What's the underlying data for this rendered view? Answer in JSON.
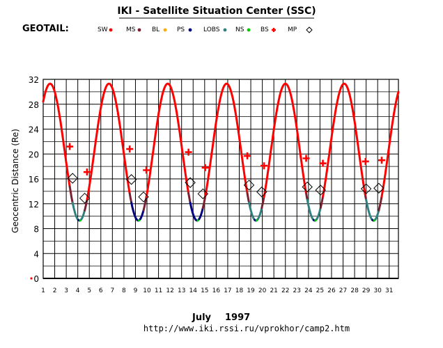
{
  "chart_data": {
    "type": "line",
    "title": "IKI - Satellite Situation Center (SSC)",
    "satellite": "GEOTAIL:",
    "ylabel": "Geocentric Distance (Re)",
    "ylim": [
      0,
      32
    ],
    "yticks": [
      0,
      4,
      8,
      12,
      16,
      20,
      24,
      28,
      32
    ],
    "xlim": [
      1,
      31.8
    ],
    "xticks": [
      1,
      2,
      3,
      4,
      5,
      6,
      7,
      8,
      9,
      10,
      11,
      12,
      13,
      14,
      15,
      16,
      17,
      18,
      19,
      20,
      21,
      22,
      23,
      24,
      25,
      26,
      27,
      28,
      29,
      30,
      31
    ],
    "month_label": "July",
    "year_label": "1997",
    "url": "http://www.iki.rssi.ru/vprokhor/camp2.htm",
    "grid": true,
    "legend": [
      {
        "label": "SW",
        "symbol": "dot",
        "color": "#ff0000"
      },
      {
        "label": "MS",
        "symbol": "dot",
        "color": "#7a2030"
      },
      {
        "label": "BL",
        "symbol": "dot",
        "color": "#ffaa00"
      },
      {
        "label": "PS",
        "symbol": "dot",
        "color": "#000080"
      },
      {
        "label": "LOBS",
        "symbol": "dot",
        "color": "#308080"
      },
      {
        "label": "NS",
        "symbol": "dot",
        "color": "#00cc00"
      },
      {
        "label": "BS",
        "symbol": "plus",
        "color": "#ff0000"
      },
      {
        "label": "MP",
        "symbol": "diamond",
        "color": "#000000"
      }
    ],
    "orbit": {
      "apogee": 31.3,
      "perigee": 9.3,
      "period_days": 5.1,
      "first_apogee_day": 1.6
    },
    "perigees": [
      {
        "day": 4.15,
        "tail": "LOBS"
      },
      {
        "day": 9.25,
        "tail": "PS"
      },
      {
        "day": 14.35,
        "tail": "PS"
      },
      {
        "day": 19.45,
        "tail": "LOBS"
      },
      {
        "day": 24.55,
        "tail": "LOBS"
      },
      {
        "day": 29.65,
        "tail": "LOBS"
      }
    ],
    "bow_shock_crossings": [
      {
        "day": 3.3,
        "y": 21.2
      },
      {
        "day": 4.8,
        "y": 17.1
      },
      {
        "day": 8.5,
        "y": 20.8
      },
      {
        "day": 9.95,
        "y": 17.4
      },
      {
        "day": 13.6,
        "y": 20.3
      },
      {
        "day": 15.05,
        "y": 17.8
      },
      {
        "day": 18.7,
        "y": 19.7
      },
      {
        "day": 20.15,
        "y": 18.1
      },
      {
        "day": 23.8,
        "y": 19.3
      },
      {
        "day": 25.25,
        "y": 18.5
      },
      {
        "day": 28.95,
        "y": 18.8
      },
      {
        "day": 30.35,
        "y": 19.0
      }
    ],
    "magnetopause_crossings": [
      {
        "day": 3.55,
        "y": 16.1
      },
      {
        "day": 4.6,
        "y": 12.9
      },
      {
        "day": 8.65,
        "y": 15.9
      },
      {
        "day": 9.7,
        "y": 13.1
      },
      {
        "day": 13.75,
        "y": 15.4
      },
      {
        "day": 14.85,
        "y": 13.6
      },
      {
        "day": 18.85,
        "y": 15.0
      },
      {
        "day": 19.95,
        "y": 13.9
      },
      {
        "day": 23.9,
        "y": 14.7
      },
      {
        "day": 25.05,
        "y": 14.2
      },
      {
        "day": 29.0,
        "y": 14.4
      },
      {
        "day": 30.1,
        "y": 14.5
      }
    ]
  }
}
